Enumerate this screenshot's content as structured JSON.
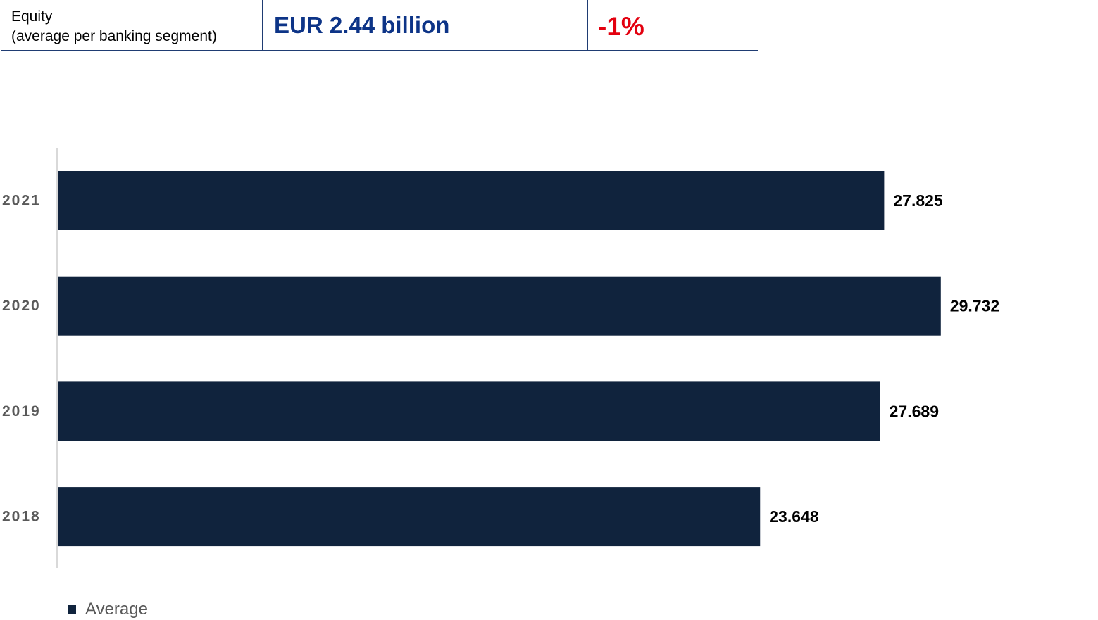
{
  "header": {
    "label_line1": "Equity",
    "label_line2": "(average per banking segment)",
    "value": "EUR 2.44 billion",
    "change": "-1%",
    "value_color": "#0d3487",
    "change_color": "#e3000f",
    "rule_color": "#1f3c73"
  },
  "chart_data": {
    "type": "bar",
    "orientation": "horizontal",
    "categories": [
      "2021",
      "2020",
      "2019",
      "2018"
    ],
    "series": [
      {
        "name": "Average",
        "values": [
          27.825,
          29.732,
          27.689,
          23.648
        ],
        "labels": [
          "27.825",
          "29.732",
          "27.689",
          "23.648"
        ],
        "color": "#10233d"
      }
    ],
    "xlim": [
      0,
      31
    ],
    "grid": false,
    "legend_position": "bottom-left"
  },
  "legend": {
    "label": "Average",
    "color": "#10233d"
  }
}
